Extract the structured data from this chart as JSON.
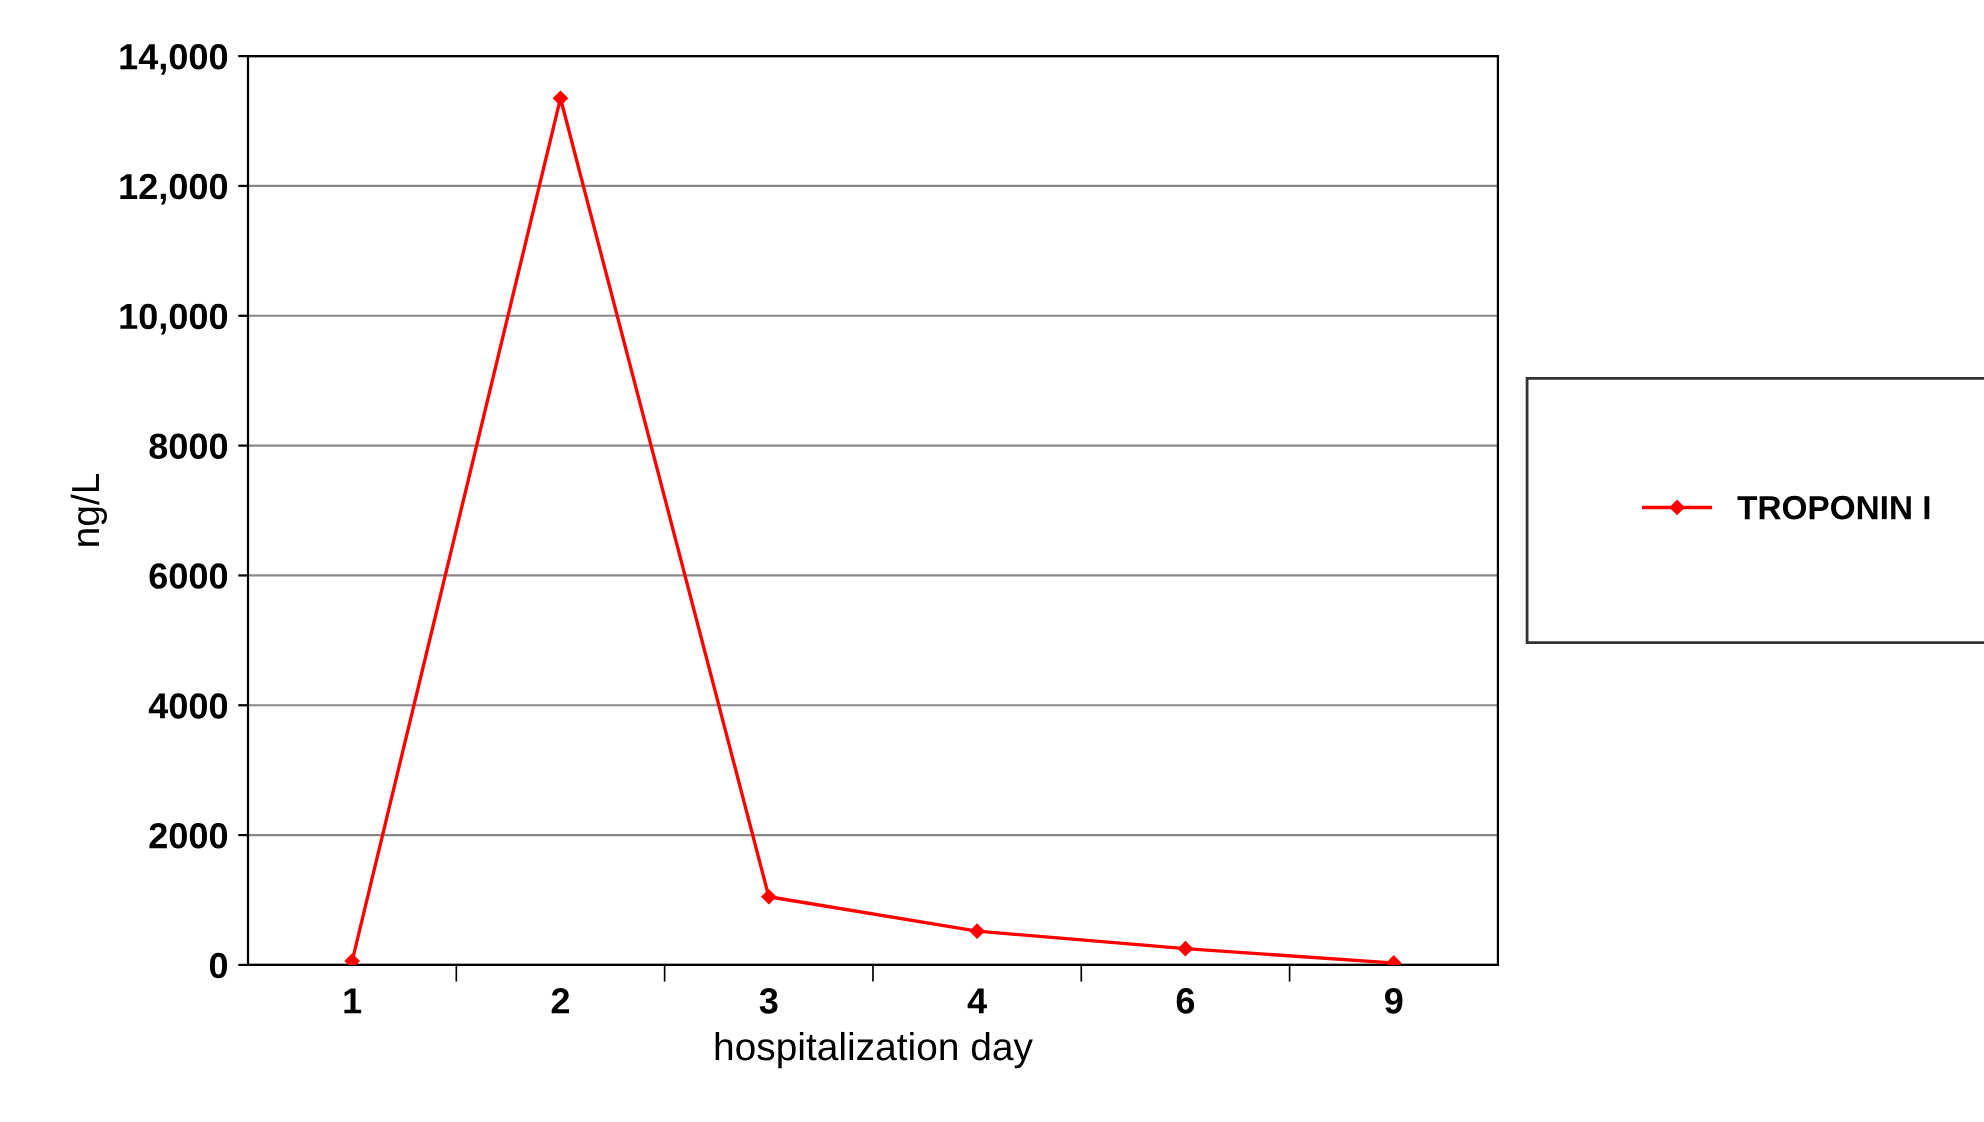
{
  "chart_data": {
    "type": "line",
    "xlabel": "hospitalization day",
    "ylabel": "ng/L",
    "categories": [
      "1",
      "2",
      "3",
      "4",
      "6",
      "9"
    ],
    "series": [
      {
        "name": "TROPONIN I",
        "color": "#ff0000",
        "values": [
          60,
          13350,
          1050,
          520,
          250,
          30
        ]
      }
    ],
    "ylim": [
      0,
      14000
    ],
    "yticks": [
      0,
      2000,
      4000,
      6000,
      8000,
      {
        "value": 10000,
        "label": "10,000"
      },
      {
        "value": 12000,
        "label": "12,000"
      },
      {
        "value": 14000,
        "label": "14,000"
      }
    ],
    "grid": "y",
    "legend": "right",
    "marker": "diamond",
    "line_style": "solid"
  }
}
